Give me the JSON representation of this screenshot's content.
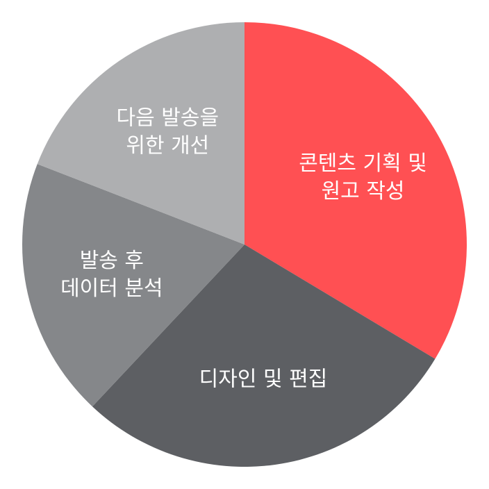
{
  "chart_data": {
    "type": "pie",
    "start_angle_deg": 0,
    "direction": "clockwise",
    "legend": "none",
    "slices": [
      {
        "label_lines": [
          "콘텐츠 기획 및",
          "원고 작성"
        ],
        "value": 33.6,
        "color": "#FF5053"
      },
      {
        "label_lines": [
          "디자인 및 편집"
        ],
        "value": 28.4,
        "color": "#5D5F63"
      },
      {
        "label_lines": [
          "발송 후",
          "데이터 분석"
        ],
        "value": 18.9,
        "color": "#85878A"
      },
      {
        "label_lines": [
          "다음 발송을",
          "위한 개선"
        ],
        "value": 19.1,
        "color": "#AEAFB1"
      }
    ]
  }
}
